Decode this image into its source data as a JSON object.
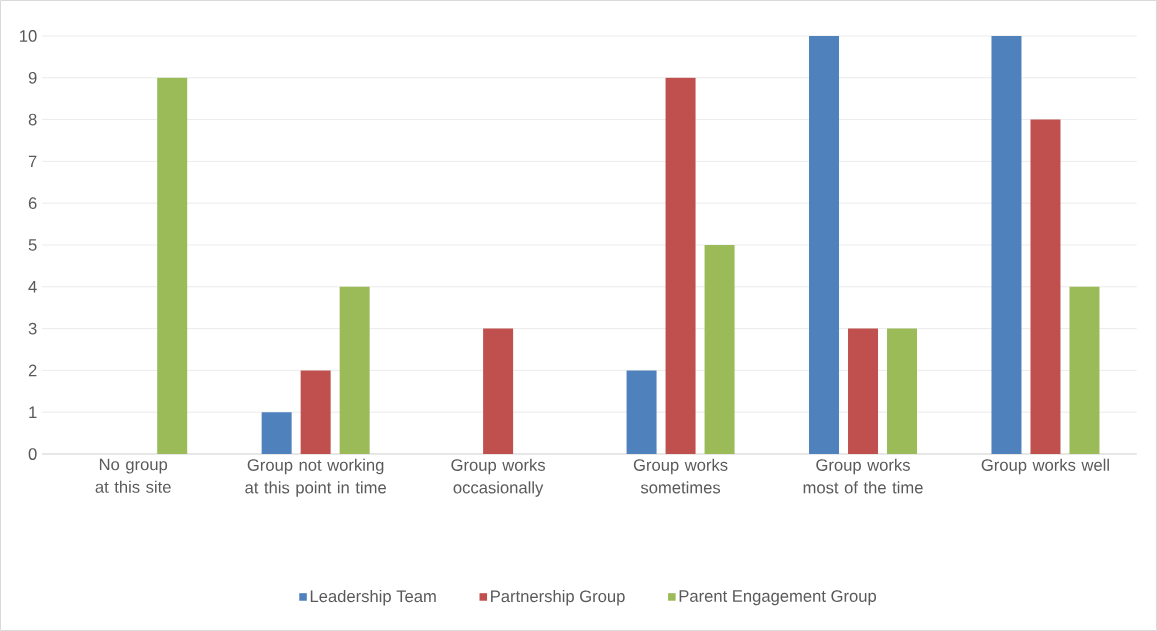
{
  "chart_data": {
    "type": "bar",
    "categories": [
      "No group at this site",
      "Group not working at this point in time",
      "Group works occasionally",
      "Group works sometimes",
      "Group works most of the time",
      "Group works well"
    ],
    "series": [
      {
        "name": "Leadership Team",
        "color": "#4f81bd",
        "values": [
          0,
          1,
          0,
          2,
          10,
          10
        ]
      },
      {
        "name": "Partnership Group",
        "color": "#c0504d",
        "values": [
          0,
          2,
          3,
          9,
          3,
          8
        ]
      },
      {
        "name": "Parent Engagement Group",
        "color": "#9bbb59",
        "values": [
          9,
          4,
          0,
          5,
          3,
          4
        ]
      }
    ],
    "ylim": [
      0,
      10
    ],
    "yticks": [
      0,
      1,
      2,
      3,
      4,
      5,
      6,
      7,
      8,
      9,
      10
    ],
    "grid": "y",
    "legend": "bottom"
  }
}
